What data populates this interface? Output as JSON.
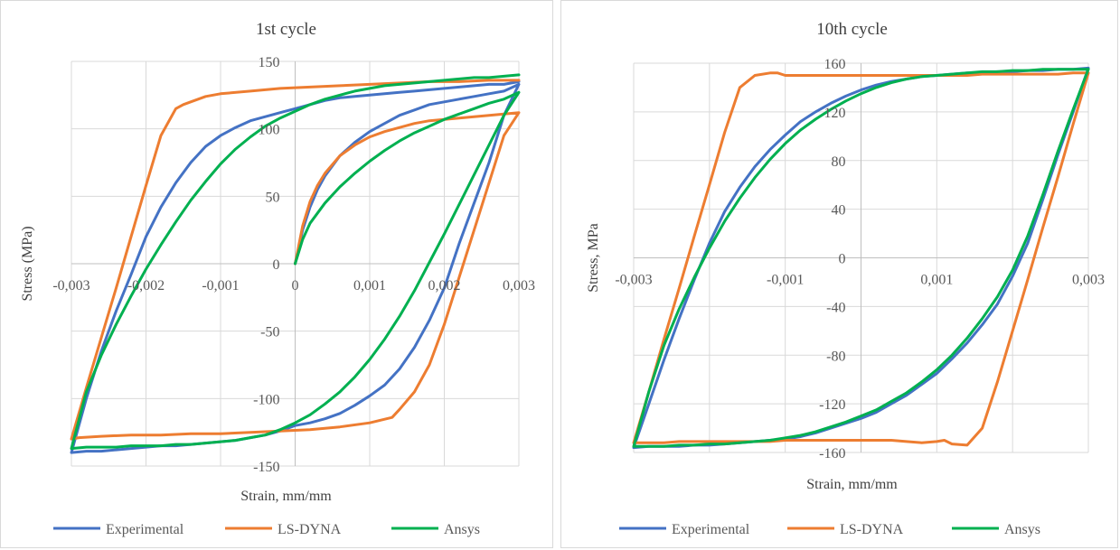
{
  "chart_data": [
    {
      "type": "line",
      "title": "1st cycle",
      "xlabel": "Strain, mm/mm",
      "ylabel": "Stress  (MPa)",
      "xlim": [
        -0.003,
        0.003
      ],
      "ylim": [
        -150,
        150
      ],
      "x_ticks": [
        -0.003,
        -0.002,
        -0.001,
        0,
        0.001,
        0.002,
        0.003
      ],
      "x_tick_labels": [
        "-0,003",
        "-0,002",
        "-0,001",
        "0",
        "0,001",
        "0,002",
        "0,003"
      ],
      "y_ticks": [
        -150,
        -100,
        -50,
        0,
        50,
        100,
        150
      ],
      "y_tick_labels": [
        "-150",
        "-100",
        "-50",
        "0",
        "50",
        "100",
        "150"
      ],
      "grid": true,
      "legend_position": "bottom",
      "series": [
        {
          "name": "Experimental",
          "color": "#4472C4",
          "x": [
            0,
            0.0001,
            0.0002,
            0.0003,
            0.0004,
            0.0006,
            0.0008,
            0.001,
            0.0012,
            0.0014,
            0.0016,
            0.0018,
            0.002,
            0.0022,
            0.0024,
            0.0026,
            0.0028,
            0.003,
            0.0028,
            0.0026,
            0.0024,
            0.0022,
            0.002,
            0.0018,
            0.0016,
            0.0014,
            0.0012,
            0.001,
            0.0008,
            0.0006,
            0.0004,
            0.0002,
            0,
            -0.0002,
            -0.0004,
            -0.0006,
            -0.0008,
            -0.001,
            -0.0012,
            -0.0014,
            -0.0016,
            -0.0018,
            -0.002,
            -0.0022,
            -0.0024,
            -0.0026,
            -0.0028,
            -0.003,
            -0.0028,
            -0.0026,
            -0.0024,
            -0.0022,
            -0.002,
            -0.0018,
            -0.0016,
            -0.0014,
            -0.0012,
            -0.001,
            -0.0008,
            -0.0006,
            -0.0004,
            -0.0002,
            0,
            0.0002,
            0.0004,
            0.0006,
            0.0008,
            0.001,
            0.0012,
            0.0014,
            0.0016,
            0.0018,
            0.002,
            0.0022,
            0.0024,
            0.0026,
            0.0028,
            0.003
          ],
          "y": [
            0,
            25,
            42,
            55,
            65,
            80,
            90,
            98,
            104,
            110,
            114,
            118,
            120,
            122,
            124,
            126,
            128,
            133,
            110,
            75,
            45,
            15,
            -18,
            -42,
            -62,
            -78,
            -90,
            -98,
            -105,
            -111,
            -115,
            -118,
            -120,
            -124,
            -127,
            -129,
            -131,
            -132,
            -133,
            -134,
            -135,
            -135,
            -136,
            -137,
            -138,
            -139,
            -139,
            -140,
            -100,
            -65,
            -35,
            -8,
            20,
            42,
            60,
            75,
            87,
            95,
            101,
            106,
            109,
            112,
            115,
            118,
            121,
            123,
            124,
            125,
            126,
            127,
            128,
            129,
            130,
            131,
            132,
            133,
            133,
            135
          ]
        },
        {
          "name": "LS-DYNA",
          "color": "#ED7D31",
          "x": [
            0,
            0.0001,
            0.0002,
            0.0003,
            0.0004,
            0.0006,
            0.0008,
            0.001,
            0.0012,
            0.0014,
            0.0016,
            0.0018,
            0.002,
            0.0022,
            0.0024,
            0.0026,
            0.0028,
            0.003,
            0.0028,
            0.0026,
            0.0024,
            0.0022,
            0.002,
            0.0018,
            0.0016,
            0.0014,
            0.0013,
            0.001,
            0.0006,
            0.0002,
            -0.0002,
            -0.0006,
            -0.001,
            -0.0014,
            -0.0018,
            -0.0022,
            -0.0026,
            -0.0029,
            -0.003,
            -0.0028,
            -0.0026,
            -0.0024,
            -0.0022,
            -0.002,
            -0.0018,
            -0.0016,
            -0.0015,
            -0.0014,
            -0.0012,
            -0.001,
            -0.0006,
            -0.0002,
            0.0002,
            0.0006,
            0.001,
            0.0014,
            0.0018,
            0.0022,
            0.0026,
            0.003
          ],
          "y": [
            0,
            28,
            46,
            58,
            67,
            80,
            88,
            94,
            98,
            101,
            104,
            106,
            107,
            108,
            109,
            110,
            111,
            112,
            95,
            60,
            25,
            -10,
            -45,
            -75,
            -95,
            -108,
            -114,
            -118,
            -121,
            -123,
            -124,
            -125,
            -126,
            -126,
            -127,
            -127,
            -128,
            -129,
            -130,
            -92,
            -55,
            -18,
            20,
            58,
            95,
            115,
            118,
            120,
            124,
            126,
            128,
            130,
            131,
            132,
            133,
            134,
            135,
            135,
            136,
            136
          ]
        },
        {
          "name": "Ansys",
          "color": "#00B050",
          "x": [
            0,
            0.0001,
            0.0002,
            0.0004,
            0.0006,
            0.0008,
            0.001,
            0.0012,
            0.0014,
            0.0016,
            0.0018,
            0.002,
            0.0022,
            0.0024,
            0.0026,
            0.0028,
            0.003,
            0.0028,
            0.0026,
            0.0024,
            0.0022,
            0.002,
            0.0018,
            0.0016,
            0.0014,
            0.0012,
            0.001,
            0.0008,
            0.0006,
            0.0004,
            0.0002,
            0,
            -0.0002,
            -0.0004,
            -0.0006,
            -0.0008,
            -0.001,
            -0.0012,
            -0.0014,
            -0.0016,
            -0.0018,
            -0.002,
            -0.0022,
            -0.0024,
            -0.0026,
            -0.0028,
            -0.003,
            -0.0028,
            -0.0026,
            -0.0024,
            -0.0022,
            -0.002,
            -0.0018,
            -0.0016,
            -0.0014,
            -0.0012,
            -0.001,
            -0.0008,
            -0.0006,
            -0.0004,
            -0.0002,
            0,
            0.0002,
            0.0004,
            0.0006,
            0.0008,
            0.001,
            0.0012,
            0.0014,
            0.0016,
            0.0018,
            0.002,
            0.0022,
            0.0024,
            0.0026,
            0.0028,
            0.003
          ],
          "y": [
            0,
            18,
            30,
            45,
            57,
            67,
            76,
            84,
            91,
            97,
            102,
            107,
            111,
            115,
            119,
            122,
            127,
            110,
            88,
            66,
            44,
            22,
            1,
            -20,
            -39,
            -56,
            -71,
            -84,
            -95,
            -104,
            -112,
            -118,
            -123,
            -127,
            -129,
            -131,
            -132,
            -133,
            -134,
            -134,
            -135,
            -135,
            -135,
            -136,
            -136,
            -136,
            -137,
            -95,
            -68,
            -45,
            -24,
            -4,
            14,
            31,
            47,
            61,
            74,
            85,
            94,
            102,
            108,
            113,
            118,
            122,
            125,
            128,
            130,
            132,
            133,
            134,
            135,
            136,
            137,
            138,
            138,
            139,
            140
          ]
        }
      ]
    },
    {
      "type": "line",
      "title": "10th cycle",
      "xlabel": "Strain, mm/mm",
      "ylabel": "Stress, MPa",
      "xlim": [
        -0.003,
        0.003
      ],
      "ylim": [
        -160,
        160
      ],
      "x_ticks": [
        -0.003,
        -0.002,
        -0.001,
        0,
        0.001,
        0.002,
        0.003
      ],
      "x_tick_labels": [
        "-0,003",
        "",
        "-0,001",
        "",
        "0,001",
        "",
        "0,003"
      ],
      "y_ticks": [
        -160,
        -120,
        -80,
        -40,
        0,
        40,
        80,
        120,
        160
      ],
      "y_tick_labels": [
        "-160",
        "-120",
        "-80",
        "-40",
        "0",
        "40",
        "80",
        "120",
        "160"
      ],
      "grid": true,
      "legend_position": "bottom",
      "series": [
        {
          "name": "Experimental",
          "color": "#4472C4",
          "x": [
            0.003,
            0.0028,
            0.0026,
            0.0024,
            0.0022,
            0.002,
            0.0018,
            0.0016,
            0.0014,
            0.0012,
            0.001,
            0.0008,
            0.0006,
            0.0004,
            0.0002,
            0,
            -0.0002,
            -0.0004,
            -0.0006,
            -0.0008,
            -0.001,
            -0.0012,
            -0.0014,
            -0.0016,
            -0.0018,
            -0.002,
            -0.0022,
            -0.0024,
            -0.0026,
            -0.0028,
            -0.003,
            -0.0028,
            -0.0026,
            -0.0024,
            -0.0022,
            -0.002,
            -0.0018,
            -0.0016,
            -0.0014,
            -0.0012,
            -0.001,
            -0.0008,
            -0.0006,
            -0.0004,
            -0.0002,
            0,
            0.0002,
            0.0004,
            0.0006,
            0.0008,
            0.001,
            0.0012,
            0.0014,
            0.0016,
            0.0018,
            0.002,
            0.0022,
            0.0024,
            0.0026,
            0.0028,
            0.003
          ],
          "y": [
            156,
            120,
            85,
            48,
            12,
            -15,
            -38,
            -55,
            -70,
            -83,
            -95,
            -104,
            -113,
            -120,
            -127,
            -132,
            -136,
            -140,
            -144,
            -147,
            -149,
            -150,
            -151,
            -152,
            -153,
            -154,
            -154,
            -155,
            -155,
            -155,
            -156,
            -120,
            -84,
            -50,
            -18,
            12,
            38,
            58,
            75,
            89,
            101,
            112,
            120,
            127,
            133,
            138,
            142,
            145,
            147,
            149,
            150,
            151,
            152,
            152,
            153,
            153,
            154,
            154,
            155,
            155,
            156
          ]
        },
        {
          "name": "LS-DYNA",
          "color": "#ED7D31",
          "x": [
            0.003,
            0.0028,
            0.0026,
            0.0024,
            0.0022,
            0.002,
            0.0018,
            0.0016,
            0.0014,
            0.0012,
            0.0011,
            0.001,
            0.0008,
            0.0006,
            0.0004,
            0.0002,
            0,
            -0.0002,
            -0.0004,
            -0.0006,
            -0.0008,
            -0.001,
            -0.0012,
            -0.0014,
            -0.0016,
            -0.0018,
            -0.002,
            -0.0022,
            -0.0024,
            -0.0026,
            -0.0028,
            -0.003,
            -0.0028,
            -0.0026,
            -0.0024,
            -0.0022,
            -0.002,
            -0.0018,
            -0.0016,
            -0.0014,
            -0.0012,
            -0.0011,
            -0.001,
            -0.0008,
            -0.0006,
            -0.0004,
            -0.0002,
            0,
            0.0002,
            0.0004,
            0.0006,
            0.0008,
            0.001,
            0.0012,
            0.0014,
            0.0016,
            0.0018,
            0.002,
            0.0022,
            0.0024,
            0.0026,
            0.0028,
            0.003
          ],
          "y": [
            152,
            110,
            67,
            25,
            -18,
            -60,
            -102,
            -140,
            -154,
            -153,
            -150,
            -151,
            -152,
            -151,
            -150,
            -150,
            -150,
            -150,
            -150,
            -150,
            -150,
            -150,
            -151,
            -151,
            -151,
            -151,
            -151,
            -151,
            -151,
            -152,
            -152,
            -152,
            -110,
            -67,
            -25,
            18,
            60,
            103,
            140,
            150,
            152,
            152,
            150,
            150,
            150,
            150,
            150,
            150,
            150,
            150,
            150,
            150,
            150,
            150,
            150,
            151,
            151,
            151,
            151,
            151,
            151,
            152,
            152
          ]
        },
        {
          "name": "Ansys",
          "color": "#00B050",
          "x": [
            0.003,
            0.0028,
            0.0026,
            0.0024,
            0.0022,
            0.002,
            0.0018,
            0.0016,
            0.0014,
            0.0012,
            0.001,
            0.0008,
            0.0006,
            0.0004,
            0.0002,
            0,
            -0.0002,
            -0.0004,
            -0.0006,
            -0.0008,
            -0.001,
            -0.0012,
            -0.0014,
            -0.0016,
            -0.0018,
            -0.002,
            -0.0022,
            -0.0024,
            -0.0026,
            -0.0028,
            -0.003,
            -0.0028,
            -0.0026,
            -0.0024,
            -0.0022,
            -0.002,
            -0.0018,
            -0.0016,
            -0.0014,
            -0.0012,
            -0.001,
            -0.0008,
            -0.0006,
            -0.0004,
            -0.0002,
            0,
            0.0002,
            0.0004,
            0.0006,
            0.0008,
            0.001,
            0.0012,
            0.0014,
            0.0016,
            0.0018,
            0.002,
            0.0022,
            0.0024,
            0.0026,
            0.0028,
            0.003
          ],
          "y": [
            155,
            122,
            88,
            52,
            18,
            -10,
            -32,
            -50,
            -66,
            -80,
            -92,
            -102,
            -111,
            -118,
            -125,
            -130,
            -135,
            -139,
            -143,
            -146,
            -148,
            -150,
            -151,
            -152,
            -153,
            -153,
            -154,
            -154,
            -155,
            -155,
            -155,
            -110,
            -72,
            -42,
            -16,
            8,
            30,
            49,
            66,
            81,
            94,
            105,
            114,
            122,
            129,
            135,
            140,
            144,
            147,
            149,
            150,
            151,
            152,
            153,
            153,
            154,
            154,
            155,
            155,
            155,
            155
          ]
        }
      ]
    }
  ]
}
